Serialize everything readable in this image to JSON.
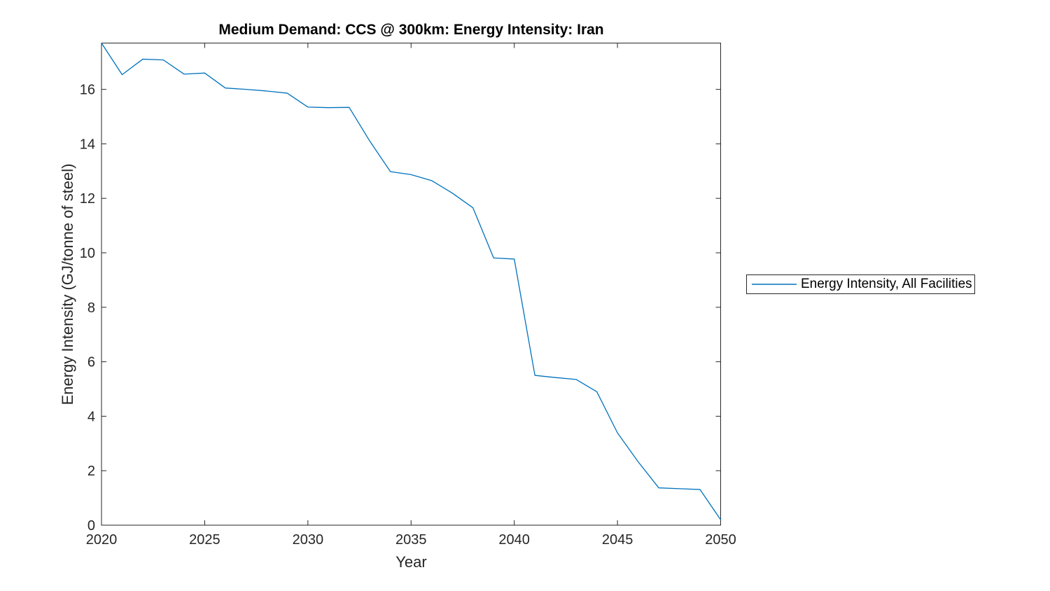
{
  "title": "Medium Demand: CCS @ 300km: Energy Intensity: Iran",
  "legend": {
    "label": "Energy Intensity, All Facilities"
  },
  "colors": {
    "line": "#0072BD",
    "axis": "#262626",
    "title": "#000000",
    "background": "#ffffff"
  },
  "chart_data": {
    "type": "line",
    "title": "Medium Demand: CCS @ 300km: Energy Intensity: Iran",
    "xlabel": "Year",
    "ylabel": "Energy Intensity (GJ/tonne of steel)",
    "xlim": [
      2020,
      2050
    ],
    "ylim": [
      0,
      17.7
    ],
    "x_ticks": [
      2020,
      2025,
      2030,
      2035,
      2040,
      2045,
      2050
    ],
    "y_ticks": [
      0,
      2,
      4,
      6,
      8,
      10,
      12,
      14,
      16
    ],
    "grid": false,
    "legend_position": "right-outside",
    "series": [
      {
        "name": "Energy Intensity, All Facilities",
        "color": "#0072BD",
        "x": [
          2020,
          2021,
          2022,
          2023,
          2024,
          2025,
          2026,
          2027,
          2028,
          2029,
          2030,
          2031,
          2032,
          2033,
          2034,
          2035,
          2036,
          2037,
          2038,
          2039,
          2040,
          2041,
          2042,
          2043,
          2044,
          2045,
          2046,
          2047,
          2048,
          2049,
          2050
        ],
        "y": [
          17.7,
          16.54,
          17.11,
          17.08,
          16.56,
          16.6,
          16.05,
          16.0,
          15.94,
          15.86,
          15.35,
          15.33,
          15.34,
          14.1,
          12.98,
          12.87,
          12.65,
          12.19,
          11.65,
          9.81,
          9.77,
          5.5,
          5.42,
          5.35,
          4.9,
          3.39,
          2.33,
          1.37,
          1.34,
          1.31,
          0.2
        ]
      }
    ]
  }
}
